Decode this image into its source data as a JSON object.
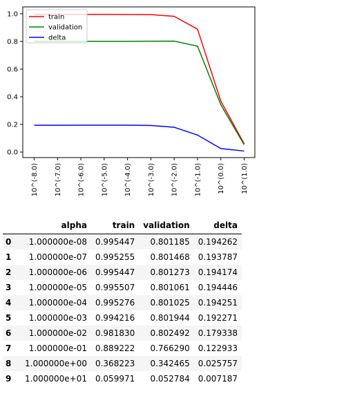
{
  "chart_data": {
    "type": "line",
    "x_categories": [
      "10^(-8.0)",
      "10^(-7.0)",
      "10^(-6.0)",
      "10^(-5.0)",
      "10^(-4.0)",
      "10^(-3.0)",
      "10^(-2.0)",
      "10^(-1.0)",
      "10^(0.0)",
      "10^(1.0)"
    ],
    "series": [
      {
        "name": "train",
        "color": "#ff0000",
        "values": [
          0.995447,
          0.995255,
          0.995447,
          0.995507,
          0.995276,
          0.994216,
          0.98183,
          0.889222,
          0.368223,
          0.059971
        ]
      },
      {
        "name": "validation",
        "color": "#008000",
        "values": [
          0.801185,
          0.801468,
          0.801273,
          0.801061,
          0.801025,
          0.801944,
          0.802492,
          0.76629,
          0.342465,
          0.052784
        ]
      },
      {
        "name": "delta",
        "color": "#0000ff",
        "values": [
          0.194262,
          0.193787,
          0.194174,
          0.194446,
          0.194251,
          0.192271,
          0.179338,
          0.122933,
          0.025757,
          0.007187
        ]
      }
    ],
    "ylim": [
      -0.04,
      1.05
    ],
    "yticks": [
      0.0,
      0.2,
      0.4,
      0.6,
      0.8,
      1.0
    ],
    "ytick_labels": [
      "0.0",
      "0.2",
      "0.4",
      "0.6",
      "0.8",
      "1.0"
    ],
    "legend": "upper-left",
    "grid": false
  },
  "table": {
    "columns": [
      "",
      "alpha",
      "train",
      "validation",
      "delta"
    ],
    "rows": [
      {
        "index": "0",
        "alpha": "1.000000e-08",
        "train": "0.995447",
        "validation": "0.801185",
        "delta": "0.194262"
      },
      {
        "index": "1",
        "alpha": "1.000000e-07",
        "train": "0.995255",
        "validation": "0.801468",
        "delta": "0.193787"
      },
      {
        "index": "2",
        "alpha": "1.000000e-06",
        "train": "0.995447",
        "validation": "0.801273",
        "delta": "0.194174"
      },
      {
        "index": "3",
        "alpha": "1.000000e-05",
        "train": "0.995507",
        "validation": "0.801061",
        "delta": "0.194446"
      },
      {
        "index": "4",
        "alpha": "1.000000e-04",
        "train": "0.995276",
        "validation": "0.801025",
        "delta": "0.194251"
      },
      {
        "index": "5",
        "alpha": "1.000000e-03",
        "train": "0.994216",
        "validation": "0.801944",
        "delta": "0.192271"
      },
      {
        "index": "6",
        "alpha": "1.000000e-02",
        "train": "0.981830",
        "validation": "0.802492",
        "delta": "0.179338"
      },
      {
        "index": "7",
        "alpha": "1.000000e-01",
        "train": "0.889222",
        "validation": "0.766290",
        "delta": "0.122933"
      },
      {
        "index": "8",
        "alpha": "1.000000e+00",
        "train": "0.368223",
        "validation": "0.342465",
        "delta": "0.025757"
      },
      {
        "index": "9",
        "alpha": "1.000000e+01",
        "train": "0.059971",
        "validation": "0.052784",
        "delta": "0.007187"
      }
    ]
  }
}
